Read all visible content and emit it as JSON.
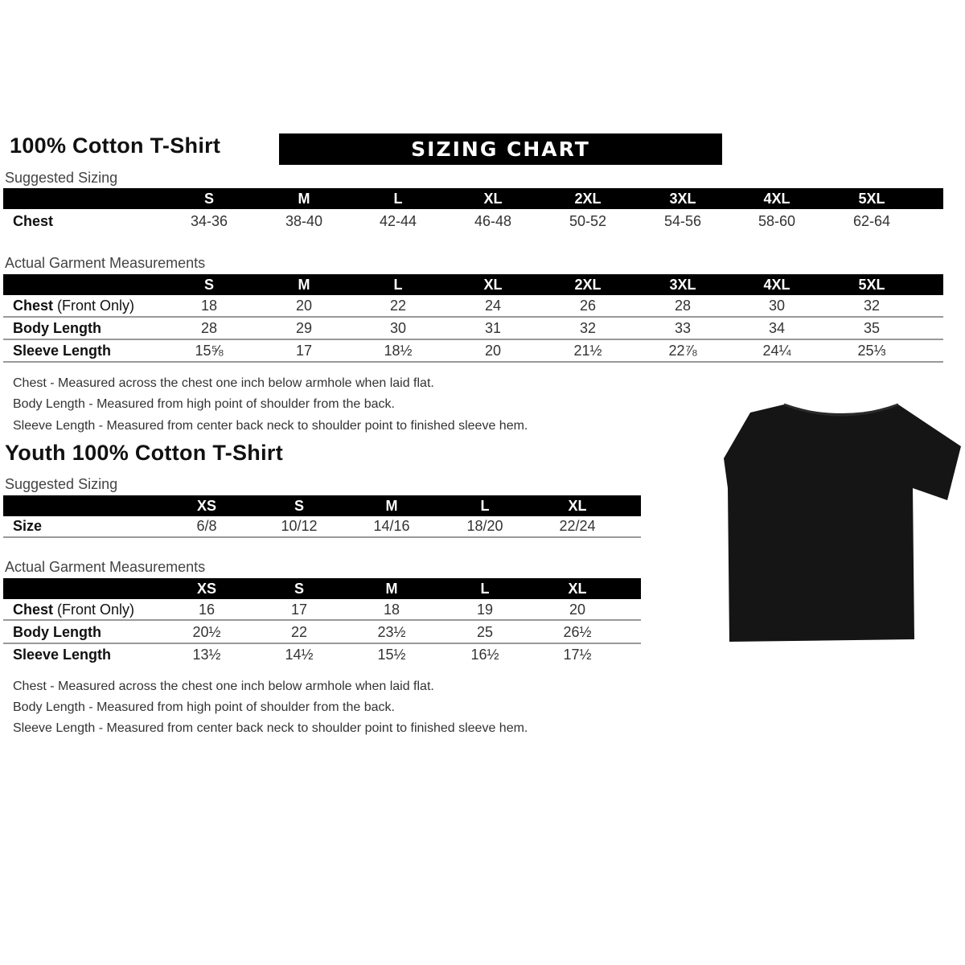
{
  "adult": {
    "title": "100% Cotton T-Shirt",
    "banner": "SIZING CHART",
    "suggested": {
      "heading": "Suggested Sizing",
      "sizes": [
        "S",
        "M",
        "L",
        "XL",
        "2XL",
        "3XL",
        "4XL",
        "5XL"
      ],
      "rows": [
        {
          "label": "Chest",
          "label_extra": "",
          "values": [
            "34-36",
            "38-40",
            "42-44",
            "46-48",
            "50-52",
            "54-56",
            "58-60",
            "62-64"
          ]
        }
      ]
    },
    "actual": {
      "heading": "Actual Garment Measurements",
      "sizes": [
        "S",
        "M",
        "L",
        "XL",
        "2XL",
        "3XL",
        "4XL",
        "5XL"
      ],
      "rows": [
        {
          "label": "Chest",
          "label_extra": "(Front Only)",
          "values": [
            "18",
            "20",
            "22",
            "24",
            "26",
            "28",
            "30",
            "32"
          ]
        },
        {
          "label": "Body Length",
          "label_extra": "",
          "values": [
            "28",
            "29",
            "30",
            "31",
            "32",
            "33",
            "34",
            "35"
          ]
        },
        {
          "label": "Sleeve Length",
          "label_extra": "",
          "values": [
            "15⅝",
            "17",
            "18½",
            "20",
            "21½",
            "22⅞",
            "24¼",
            "25⅓"
          ]
        }
      ]
    },
    "notes": [
      "Chest - Measured across the chest one inch below armhole when laid flat.",
      "Body Length - Measured from high point of shoulder from the back.",
      "Sleeve Length - Measured from center back neck to shoulder point to finished sleeve hem."
    ]
  },
  "youth": {
    "title": "Youth 100% Cotton T-Shirt",
    "suggested": {
      "heading": "Suggested Sizing",
      "sizes": [
        "XS",
        "S",
        "M",
        "L",
        "XL"
      ],
      "rows": [
        {
          "label": "Size",
          "label_extra": "",
          "values": [
            "6/8",
            "10/12",
            "14/16",
            "18/20",
            "22/24"
          ]
        }
      ]
    },
    "actual": {
      "heading": "Actual Garment Measurements",
      "sizes": [
        "XS",
        "S",
        "M",
        "L",
        "XL"
      ],
      "rows": [
        {
          "label": "Chest",
          "label_extra": "(Front Only)",
          "values": [
            "16",
            "17",
            "18",
            "19",
            "20"
          ]
        },
        {
          "label": "Body Length",
          "label_extra": "",
          "values": [
            "20½",
            "22",
            "23½",
            "25",
            "26½"
          ]
        },
        {
          "label": "Sleeve Length",
          "label_extra": "",
          "values": [
            "13½",
            "14½",
            "15½",
            "16½",
            "17½"
          ]
        }
      ]
    },
    "notes": [
      "Chest - Measured across the chest one inch below armhole when laid flat.",
      "Body Length - Measured from high point of shoulder from the back.",
      "Sleeve Length - Measured from center back neck to shoulder point to finished sleeve hem."
    ]
  },
  "image": {
    "icon": "black-tshirt",
    "color": "#111111"
  }
}
